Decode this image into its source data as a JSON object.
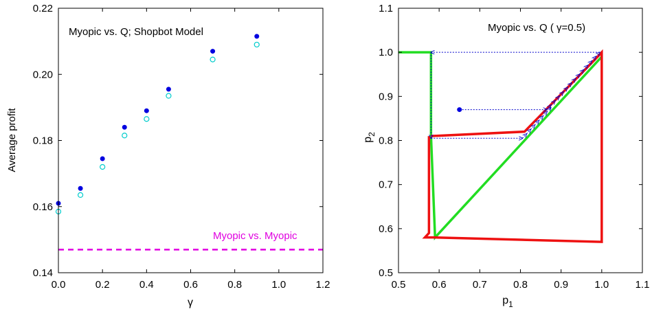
{
  "chart_data": [
    {
      "type": "scatter",
      "annotation": "Myopic vs. Q; Shopbot Model",
      "xlabel": "γ",
      "ylabel": "Average profit",
      "xlim": [
        0.0,
        1.2
      ],
      "ylim": [
        0.14,
        0.22
      ],
      "xticks": [
        "0.0",
        "0.2",
        "0.4",
        "0.6",
        "0.8",
        "1.0",
        "1.2"
      ],
      "yticks": [
        "0.14",
        "0.16",
        "0.18",
        "0.20",
        "0.22"
      ],
      "series": [
        {
          "style": "filled",
          "color": "#0000e0",
          "x": [
            0.0,
            0.1,
            0.2,
            0.3,
            0.4,
            0.5,
            0.7,
            0.9
          ],
          "y": [
            0.161,
            0.1655,
            0.1745,
            0.184,
            0.189,
            0.1955,
            0.207,
            0.2115
          ]
        },
        {
          "style": "open",
          "color": "#00cccc",
          "x": [
            0.0,
            0.1,
            0.2,
            0.3,
            0.4,
            0.5,
            0.7,
            0.9
          ],
          "y": [
            0.1585,
            0.1635,
            0.172,
            0.1815,
            0.1865,
            0.1935,
            0.2045,
            0.209
          ]
        }
      ],
      "reference_line": {
        "label": "Myopic vs. Myopic",
        "y": 0.147,
        "color": "#e000e0",
        "style": "dashed"
      }
    },
    {
      "type": "line",
      "annotation_prefix": "Myopic vs. Q ( ",
      "annotation_gamma": "γ",
      "annotation_suffix": "=0.5)",
      "xlabel_main": "p",
      "xlabel_sub": "1",
      "ylabel_main": "p",
      "ylabel_sub": "2",
      "xlim": [
        0.5,
        1.1
      ],
      "ylim": [
        0.5,
        1.1
      ],
      "xticks": [
        "0.5",
        "0.6",
        "0.7",
        "0.8",
        "0.9",
        "1.0",
        "1.1"
      ],
      "yticks": [
        "0.5",
        "0.6",
        "0.7",
        "0.8",
        "0.9",
        "1.0",
        "1.1"
      ],
      "series": [
        {
          "color": "#22dd22",
          "x": [
            0.5,
            0.58,
            0.58,
            0.59,
            1.0
          ],
          "y": [
            1.0,
            1.0,
            0.81,
            0.58,
            0.99
          ]
        },
        {
          "color": "#ee1111",
          "x": [
            0.58,
            0.81,
            0.99,
            1.0,
            1.0,
            0.59,
            0.565,
            0.575,
            0.575
          ],
          "y": [
            0.81,
            0.82,
            0.99,
            1.0,
            0.57,
            0.58,
            0.58,
            0.59,
            0.81
          ]
        }
      ],
      "start_point": {
        "x": 0.65,
        "y": 0.87,
        "color": "#0000e0"
      },
      "trajectory": {
        "color": "#0000cc",
        "style": "dotted",
        "points": [
          [
            0.65,
            0.87
          ],
          [
            0.865,
            0.87
          ],
          [
            0.875,
            0.88
          ],
          [
            0.885,
            0.89
          ],
          [
            0.895,
            0.9
          ],
          [
            0.905,
            0.91
          ],
          [
            0.915,
            0.92
          ],
          [
            0.925,
            0.93
          ],
          [
            0.935,
            0.94
          ],
          [
            0.945,
            0.95
          ],
          [
            0.955,
            0.96
          ],
          [
            0.965,
            0.97
          ],
          [
            0.975,
            0.98
          ],
          [
            0.985,
            0.99
          ],
          [
            0.995,
            1.0
          ],
          [
            0.58,
            1.0
          ],
          [
            0.58,
            0.805
          ],
          [
            0.805,
            0.805
          ],
          [
            0.815,
            0.815
          ],
          [
            0.825,
            0.825
          ],
          [
            0.835,
            0.835
          ],
          [
            0.845,
            0.845
          ],
          [
            0.855,
            0.855
          ],
          [
            0.865,
            0.865
          ],
          [
            0.875,
            0.875
          ]
        ]
      }
    }
  ]
}
